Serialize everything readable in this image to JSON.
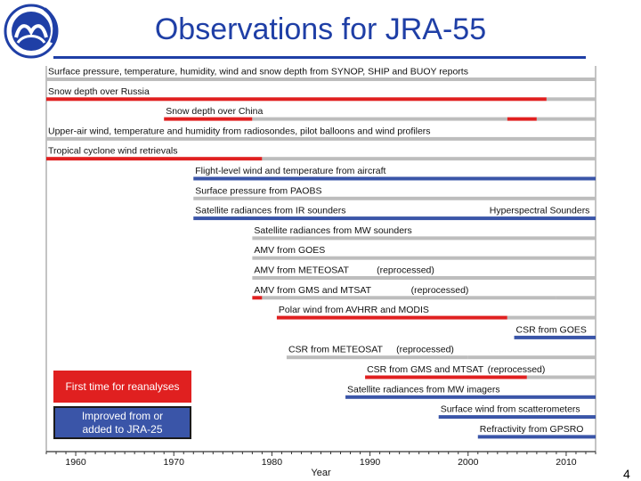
{
  "title": "Observations for JRA-55",
  "page_number": "4",
  "colors": {
    "red": "#e02020",
    "blue": "#3a55a8",
    "gray": "#bdbdbd",
    "title_blue": "#1f3fa6"
  },
  "legend": {
    "red_label": "First time for reanalyses",
    "blue_label_line1": "Improved from or",
    "blue_label_line2": "added to JRA-25"
  },
  "chart_data": {
    "type": "timeline",
    "xlabel": "Year",
    "xlim": [
      1957,
      2013
    ],
    "ticks": [
      1960,
      1970,
      1980,
      1990,
      2000,
      2010
    ],
    "rows": [
      {
        "label": "Surface pressure, temperature, humidity, wind and snow depth from SYNOP, SHIP and BUOY reports",
        "label_start": 1957,
        "segments": [
          {
            "start": 1957,
            "end": 2013,
            "color": "gray"
          }
        ]
      },
      {
        "label": "Snow depth over Russia",
        "label_start": 1957,
        "segments": [
          {
            "start": 1957,
            "end": 2008,
            "color": "red"
          },
          {
            "start": 2008,
            "end": 2013,
            "color": "gray"
          }
        ]
      },
      {
        "label": "Snow depth over China",
        "label_start": 1969,
        "segments": [
          {
            "start": 1969,
            "end": 1978,
            "color": "red"
          },
          {
            "start": 1978,
            "end": 2004,
            "color": "gray"
          },
          {
            "start": 2004,
            "end": 2007,
            "color": "red"
          },
          {
            "start": 2007,
            "end": 2013,
            "color": "gray"
          }
        ]
      },
      {
        "label": "Upper-air wind, temperature and humidity from radiosondes, pilot balloons and wind profilers",
        "label_start": 1957,
        "segments": [
          {
            "start": 1957,
            "end": 2013,
            "color": "gray"
          }
        ]
      },
      {
        "label": "Tropical cyclone wind retrievals",
        "label_start": 1957,
        "segments": [
          {
            "start": 1957,
            "end": 1979,
            "color": "red"
          },
          {
            "start": 1979,
            "end": 2013,
            "color": "gray"
          }
        ]
      },
      {
        "label": "Flight-level wind and temperature from aircraft",
        "label_start": 1972,
        "segments": [
          {
            "start": 1972,
            "end": 2013,
            "color": "blue"
          }
        ]
      },
      {
        "label": "Surface pressure from PAOBS",
        "label_start": 1972,
        "segments": [
          {
            "start": 1972,
            "end": 2013,
            "color": "gray"
          }
        ]
      },
      {
        "label": "Satellite radiances from IR sounders",
        "label_start": 1972,
        "extra_label": "Hyperspectral Sounders",
        "extra_label_start": 2002,
        "segments": [
          {
            "start": 1972,
            "end": 2013,
            "color": "blue"
          }
        ]
      },
      {
        "label": "Satellite radiances from MW sounders",
        "label_start": 1978,
        "segments": [
          {
            "start": 1978,
            "end": 2013,
            "color": "gray"
          }
        ]
      },
      {
        "label": "AMV from GOES",
        "label_start": 1978,
        "segments": [
          {
            "start": 1978,
            "end": 2013,
            "color": "gray"
          }
        ]
      },
      {
        "label": "AMV from METEOSAT",
        "label_start": 1978,
        "extra_label": "(reprocessed)",
        "extra_label_start": 1990.5,
        "segments": [
          {
            "start": 1978,
            "end": 2013,
            "color": "gray"
          }
        ]
      },
      {
        "label": "AMV from GMS and MTSAT",
        "label_start": 1978,
        "extra_label": "(reprocessed)",
        "extra_label_start": 1994,
        "segments": [
          {
            "start": 1978,
            "end": 1979,
            "color": "red"
          },
          {
            "start": 1979,
            "end": 2009,
            "color": "gray"
          },
          {
            "start": 2009,
            "end": 2013,
            "color": "gray"
          }
        ]
      },
      {
        "label": "Polar wind from AVHRR and MODIS",
        "label_start": 1980.5,
        "segments": [
          {
            "start": 1980.5,
            "end": 2004,
            "color": "red"
          },
          {
            "start": 2004,
            "end": 2013,
            "color": "gray"
          }
        ]
      },
      {
        "label": "CSR from GOES",
        "label_start": 2004.7,
        "segments": [
          {
            "start": 2004.7,
            "end": 2013,
            "color": "blue"
          }
        ]
      },
      {
        "label": "CSR from METEOSAT",
        "label_start": 1981.5,
        "extra_label": "(reprocessed)",
        "extra_label_start": 1992.5,
        "segments": [
          {
            "start": 1981.5,
            "end": 2000,
            "color": "gray"
          },
          {
            "start": 2000,
            "end": 2013,
            "color": "gray"
          }
        ]
      },
      {
        "label": "CSR from GMS and MTSAT",
        "label_start": 1989.5,
        "extra_label": "(reprocessed)",
        "extra_label_start": 2001.8,
        "segments": [
          {
            "start": 1989.5,
            "end": 2006,
            "color": "red"
          },
          {
            "start": 2006,
            "end": 2013,
            "color": "gray"
          }
        ]
      },
      {
        "label": "Satellite radiances from MW imagers",
        "label_start": 1987.5,
        "segments": [
          {
            "start": 1987.5,
            "end": 2013,
            "color": "blue"
          }
        ]
      },
      {
        "label": "Surface wind from scatterometers",
        "label_start": 1997,
        "segments": [
          {
            "start": 1997,
            "end": 2013,
            "color": "blue"
          }
        ]
      },
      {
        "label": "Refractivity from GPSRO",
        "label_start": 2001,
        "segments": [
          {
            "start": 2001,
            "end": 2013,
            "color": "blue"
          }
        ]
      }
    ]
  }
}
